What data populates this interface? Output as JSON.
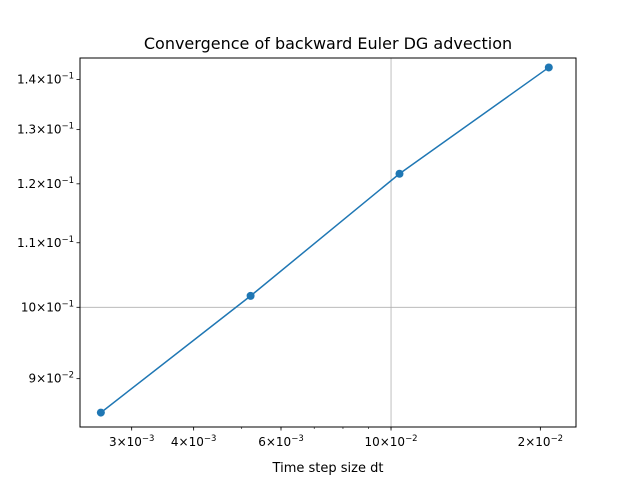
{
  "chart_data": {
    "type": "line",
    "title": "Convergence of backward Euler DG advection",
    "xlabel": "Time step size dt",
    "ylabel": "",
    "x_scale": "log",
    "y_scale": "log",
    "xlim": [
      0.00236,
      0.0236
    ],
    "ylim": [
      0.0838,
      0.1445
    ],
    "grid": "major",
    "color": "#1f77b4",
    "x_ticks": [
      {
        "value": 0.003,
        "base": "3",
        "exp": "−3"
      },
      {
        "value": 0.004,
        "base": "4",
        "exp": "−3"
      },
      {
        "value": 0.006,
        "base": "6",
        "exp": "−3"
      },
      {
        "value": 0.01,
        "base": "10",
        "exp": "−2"
      },
      {
        "value": 0.02,
        "base": "2",
        "exp": "−2"
      }
    ],
    "y_ticks": [
      {
        "value": 0.09,
        "base": "9",
        "exp": "−2"
      },
      {
        "value": 0.1,
        "base": "10",
        "exp": "−1"
      },
      {
        "value": 0.11,
        "base": "1.1",
        "exp": "−1"
      },
      {
        "value": 0.12,
        "base": "1.2",
        "exp": "−1"
      },
      {
        "value": 0.13,
        "base": "1.3",
        "exp": "−1"
      },
      {
        "value": 0.14,
        "base": "1.4",
        "exp": "−1"
      }
    ],
    "x_grid": [
      0.01
    ],
    "y_grid": [
      0.1
    ],
    "series": [
      {
        "x": [
          0.0026,
          0.00521,
          0.0104,
          0.0208
        ],
        "y": [
          0.0856,
          0.1017,
          0.1218,
          0.1425
        ]
      }
    ]
  }
}
